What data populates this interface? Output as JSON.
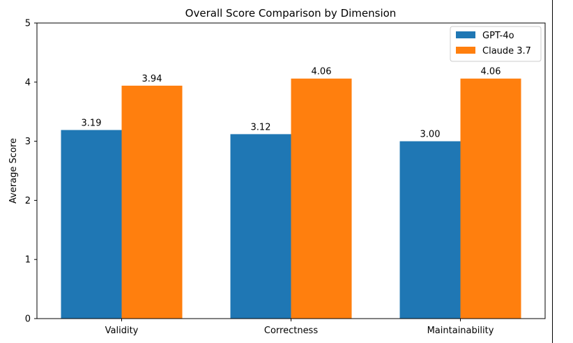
{
  "chart_data": {
    "type": "bar",
    "title": "Overall Score Comparison by Dimension",
    "xlabel": "",
    "ylabel": "Average Score",
    "categories": [
      "Validity",
      "Correctness",
      "Maintainability"
    ],
    "series": [
      {
        "name": "GPT-4o",
        "color": "#1f77b4",
        "values": [
          3.19,
          3.12,
          3.0
        ],
        "labels": [
          "3.19",
          "3.12",
          "3.00"
        ]
      },
      {
        "name": "Claude 3.7",
        "color": "#ff7f0e",
        "values": [
          3.94,
          4.06,
          4.06
        ],
        "labels": [
          "3.94",
          "4.06",
          "4.06"
        ]
      }
    ],
    "ylim": [
      0,
      5
    ],
    "yticks": [
      "0",
      "1",
      "2",
      "3",
      "4",
      "5"
    ],
    "grid": false,
    "legend_position": "top-right"
  }
}
